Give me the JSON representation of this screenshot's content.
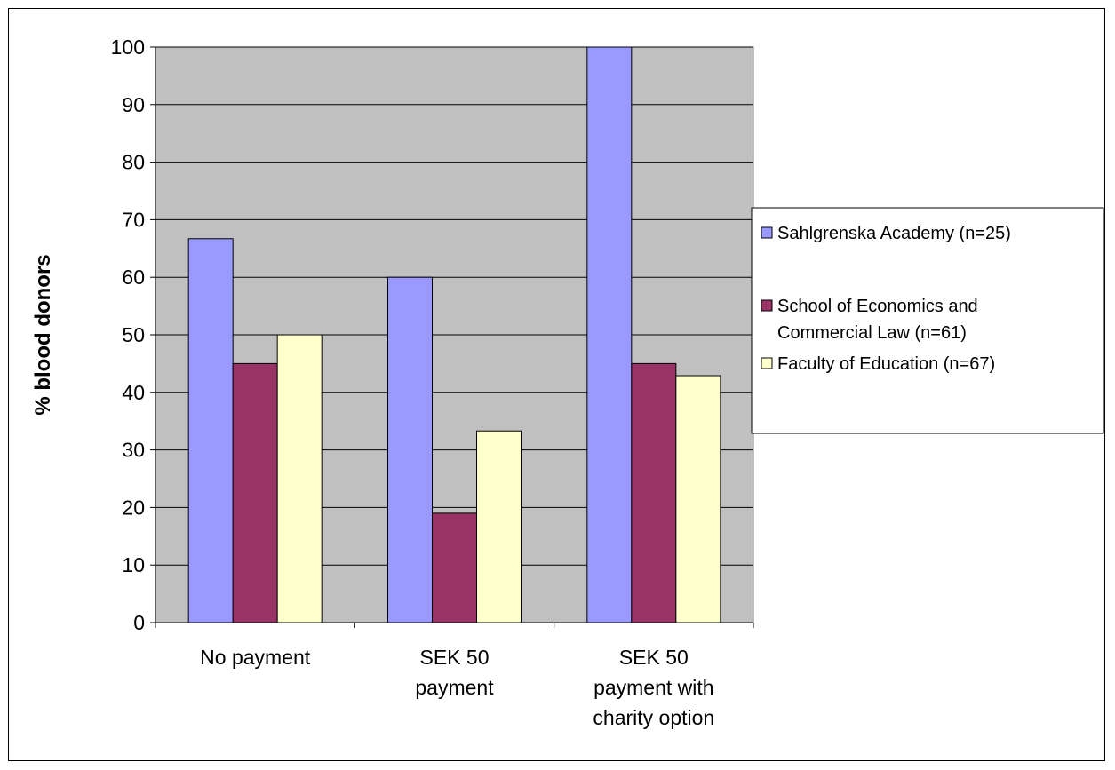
{
  "chart_data": {
    "type": "bar",
    "title": "",
    "xlabel": "",
    "ylabel": "% blood donors",
    "ylim": [
      0,
      100
    ],
    "yticks": [
      0,
      10,
      20,
      30,
      40,
      50,
      60,
      70,
      80,
      90,
      100
    ],
    "grid": true,
    "legend_position": "right",
    "plot_background": "#c0c0c0",
    "categories": [
      [
        "No payment"
      ],
      [
        "SEK 50",
        "payment"
      ],
      [
        "SEK 50",
        "payment with",
        "charity option"
      ]
    ],
    "series": [
      {
        "name": [
          "Sahlgrenska Academy (n=25)"
        ],
        "color": "#9999ff",
        "values": [
          66.7,
          60.0,
          100.0
        ]
      },
      {
        "name": [
          "School of Economics and",
          "Commercial Law (n=61)"
        ],
        "color": "#993366",
        "values": [
          45.0,
          19.0,
          45.0
        ]
      },
      {
        "name": [
          "Faculty of Education (n=67)"
        ],
        "color": "#ffffcc",
        "values": [
          50.0,
          33.3,
          42.9
        ]
      }
    ]
  }
}
